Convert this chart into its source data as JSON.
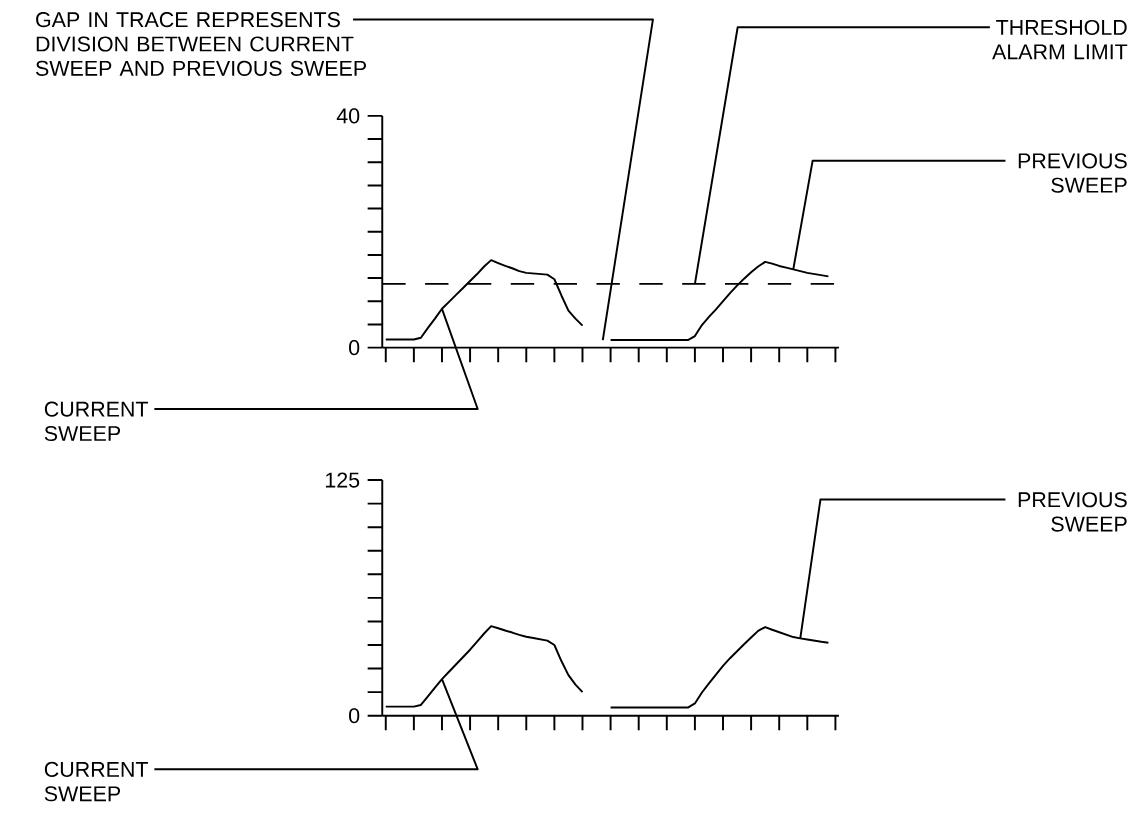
{
  "chart_data": [
    {
      "type": "line",
      "categories": [
        null,
        null,
        null,
        null,
        null,
        null,
        null,
        null,
        null,
        null,
        null,
        null,
        null,
        null,
        null,
        null,
        null,
        null,
        null,
        null,
        null,
        null,
        null,
        null,
        null,
        null,
        null,
        null,
        null,
        null,
        null,
        null,
        null,
        null,
        null,
        null,
        null,
        null,
        null,
        null,
        null,
        null,
        null,
        null,
        null,
        null,
        null,
        null,
        null,
        null,
        null,
        null,
        null,
        null,
        null,
        null,
        null,
        null,
        null,
        null,
        null,
        null,
        null,
        null,
        null
      ],
      "ylim": [
        0,
        40
      ],
      "yticks": [
        0,
        {
          "value": 4,
          "label": null
        },
        {
          "value": 8,
          "label": null
        },
        {
          "value": 12,
          "label": null
        },
        {
          "value": 16,
          "label": null
        },
        {
          "value": 20,
          "label": null
        },
        {
          "value": 24,
          "label": null
        },
        {
          "value": 28,
          "label": null
        },
        {
          "value": 32,
          "label": null
        },
        {
          "value": 36,
          "label": null
        },
        40
      ],
      "tick_labels": "y",
      "line_style": "solid",
      "ref_lines": [
        {
          "axis": "y",
          "value": 11,
          "label": "THRESHOLD ALARM LIMIT",
          "line_style": "dashed",
          "color": "#000000"
        }
      ],
      "annotations": [
        "GAP IN TRACE REPRESENTS DIVISION BETWEEN CURRENT SWEEP AND PREVIOUS SWEEP",
        "PREVIOUS SWEEP",
        "CURRENT SWEEP"
      ],
      "series": [
        {
          "color": "#000000",
          "values": [
            1.4,
            1.4,
            1.4,
            1.4,
            1.4,
            1.7,
            3.4,
            5.0,
            6.7,
            7.9,
            9.1,
            10.3,
            11.5,
            12.7,
            14.0,
            15.1,
            14.6,
            14.1,
            13.7,
            13.2,
            12.9,
            12.8,
            12.7,
            12.6,
            11.8,
            9.0,
            6.4,
            5.0,
            3.8,
            null,
            null,
            null,
            null,
            null,
            null,
            null,
            null,
            null,
            null,
            null,
            null,
            null,
            null,
            null,
            null,
            null,
            null,
            null,
            null,
            null,
            null,
            null,
            null,
            null,
            null,
            null,
            null,
            null,
            null,
            null,
            null,
            null,
            null,
            null,
            null
          ]
        },
        {
          "color": "#000000",
          "values": [
            null,
            null,
            null,
            null,
            null,
            null,
            null,
            null,
            null,
            null,
            null,
            null,
            null,
            null,
            null,
            null,
            null,
            null,
            null,
            null,
            null,
            null,
            null,
            null,
            null,
            null,
            null,
            null,
            null,
            null,
            null,
            null,
            1.3,
            1.3,
            1.3,
            1.3,
            1.3,
            1.3,
            1.3,
            1.3,
            1.3,
            1.3,
            1.3,
            1.3,
            2.0,
            3.9,
            5.3,
            6.6,
            8.0,
            9.4,
            10.7,
            11.9,
            13.0,
            14.0,
            14.8,
            14.5,
            14.1,
            13.8,
            13.5,
            13.2,
            12.9,
            12.7,
            12.5,
            12.3,
            null
          ]
        }
      ]
    },
    {
      "type": "line",
      "categories": [
        null,
        null,
        null,
        null,
        null,
        null,
        null,
        null,
        null,
        null,
        null,
        null,
        null,
        null,
        null,
        null,
        null,
        null,
        null,
        null,
        null,
        null,
        null,
        null,
        null,
        null,
        null,
        null,
        null,
        null,
        null,
        null,
        null,
        null,
        null,
        null,
        null,
        null,
        null,
        null,
        null,
        null,
        null,
        null,
        null,
        null,
        null,
        null,
        null,
        null,
        null,
        null,
        null,
        null,
        null,
        null,
        null,
        null,
        null,
        null,
        null,
        null,
        null,
        null,
        null
      ],
      "ylim": [
        0,
        125
      ],
      "yticks": [
        0,
        {
          "value": 12.5,
          "label": null
        },
        {
          "value": 25,
          "label": null
        },
        {
          "value": 37.5,
          "label": null
        },
        {
          "value": 50,
          "label": null
        },
        {
          "value": 62.5,
          "label": null
        },
        {
          "value": 75,
          "label": null
        },
        {
          "value": 87.5,
          "label": null
        },
        {
          "value": 100,
          "label": null
        },
        {
          "value": 112.5,
          "label": null
        },
        125
      ],
      "tick_labels": "y",
      "line_style": "solid",
      "annotations": [
        "PREVIOUS SWEEP",
        "CURRENT SWEEP"
      ],
      "series": [
        {
          "color": "#000000",
          "values": [
            4.8,
            4.8,
            4.8,
            4.8,
            4.8,
            5.7,
            10.2,
            14.9,
            19.4,
            23.3,
            27.2,
            31.1,
            35.0,
            39.3,
            43.6,
            47.5,
            46.4,
            45.2,
            44.1,
            42.9,
            41.9,
            41.2,
            40.5,
            39.8,
            37.5,
            29,
            21.5,
            16.5,
            12.5,
            null,
            null,
            null,
            null,
            null,
            null,
            null,
            null,
            null,
            null,
            null,
            null,
            null,
            null,
            null,
            null,
            null,
            null,
            null,
            null,
            null,
            null,
            null,
            null,
            null,
            null,
            null,
            null,
            null,
            null,
            null,
            null,
            null,
            null,
            null,
            null
          ]
        },
        {
          "color": "#000000",
          "values": [
            null,
            null,
            null,
            null,
            null,
            null,
            null,
            null,
            null,
            null,
            null,
            null,
            null,
            null,
            null,
            null,
            null,
            null,
            null,
            null,
            null,
            null,
            null,
            null,
            null,
            null,
            null,
            null,
            null,
            null,
            null,
            null,
            4.3,
            4.3,
            4.3,
            4.3,
            4.3,
            4.3,
            4.3,
            4.3,
            4.3,
            4.3,
            4.3,
            4.3,
            6.5,
            12.3,
            17.1,
            21.8,
            26.4,
            30.5,
            34.2,
            37.9,
            41.5,
            45.0,
            47.0,
            45.6,
            44.3,
            43.0,
            41.7,
            41.0,
            40.4,
            39.8,
            39.2,
            38.7,
            null
          ]
        }
      ]
    }
  ]
}
